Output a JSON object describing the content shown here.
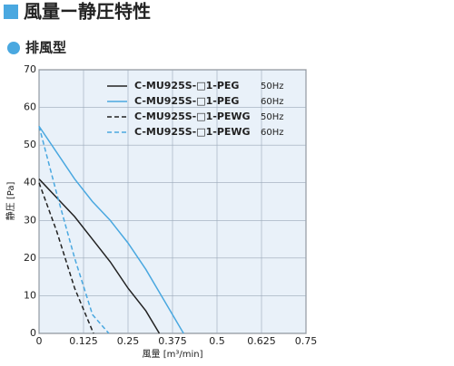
{
  "title": "風量ー静圧特性",
  "subtitle": "排風型",
  "chart_data": {
    "type": "line",
    "xlabel": "風量 [m³/min]",
    "ylabel": "静圧 [Pa]",
    "xlim": [
      0,
      0.75
    ],
    "xticks": [
      0,
      0.125,
      0.25,
      0.375,
      0.5,
      0.625,
      0.75
    ],
    "ylim": [
      0,
      70
    ],
    "yticks": [
      0,
      10,
      20,
      30,
      40,
      50,
      60,
      70
    ],
    "grid": true,
    "series": [
      {
        "name": "C-MU925S-□1-PEG",
        "legend_note": "50Hz",
        "color": "#222222",
        "dash": false,
        "x": [
          0,
          0.05,
          0.1,
          0.15,
          0.2,
          0.25,
          0.3,
          0.338
        ],
        "values": [
          41,
          36,
          31,
          25,
          19,
          12,
          6,
          0
        ]
      },
      {
        "name": "C-MU925S-□1-PEG",
        "legend_note": "60Hz",
        "color": "#4aa8e0",
        "dash": false,
        "x": [
          0,
          0.05,
          0.1,
          0.15,
          0.2,
          0.25,
          0.3,
          0.35,
          0.406
        ],
        "values": [
          55,
          48,
          41,
          35,
          30,
          24,
          17,
          9,
          0
        ]
      },
      {
        "name": "C-MU925S-□1-PEWG",
        "legend_note": "50Hz",
        "color": "#222222",
        "dash": true,
        "x": [
          0,
          0.05,
          0.1,
          0.153
        ],
        "values": [
          40,
          27,
          12,
          0
        ]
      },
      {
        "name": "C-MU925S-□1-PEWG",
        "legend_note": "60Hz",
        "color": "#4aa8e0",
        "dash": true,
        "x": [
          0,
          0.05,
          0.1,
          0.15,
          0.196
        ],
        "values": [
          55,
          37,
          20,
          5,
          0
        ]
      }
    ]
  }
}
